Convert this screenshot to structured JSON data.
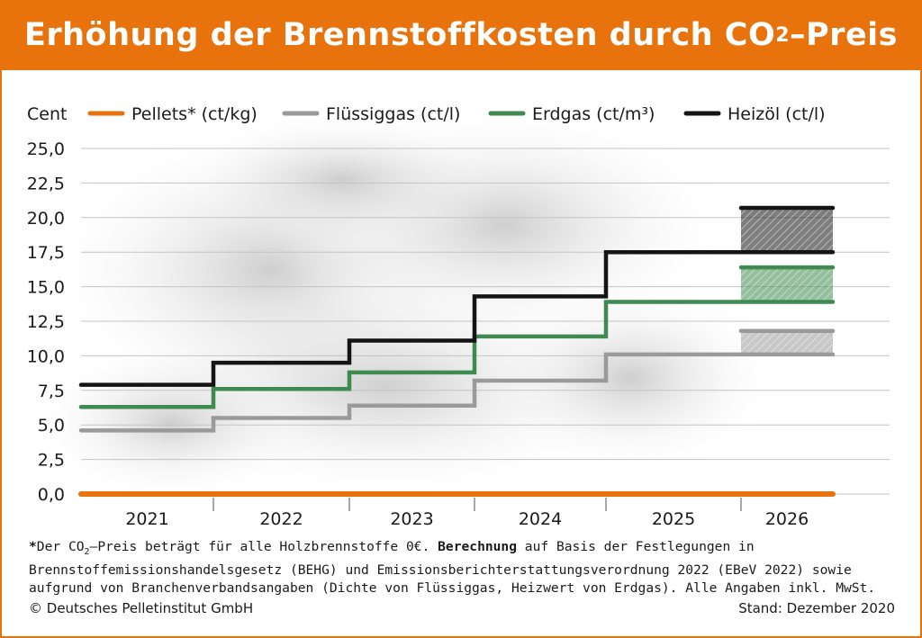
{
  "header": {
    "title_main": "Erhöhung der Brennstoffkosten durch CO",
    "title_sub": "2",
    "title_tail": "–Preis"
  },
  "chart_data": {
    "type": "line",
    "step": true,
    "title": "Erhöhung der Brennstoffkosten durch CO₂–Preis",
    "ylabel": "Cent",
    "xlabel": "",
    "ylim": [
      0,
      25
    ],
    "yticks": [
      "0,0",
      "2,5",
      "5,0",
      "7,5",
      "10,0",
      "12,5",
      "15,0",
      "17,5",
      "20,0",
      "22,5",
      "25,0"
    ],
    "categories": [
      "2021",
      "2022",
      "2023",
      "2024",
      "2025",
      "2026"
    ],
    "grid": true,
    "legend_position": "top",
    "series": [
      {
        "name": "Pellets* (ct/kg)",
        "color": "#e8720c",
        "values": [
          0,
          0,
          0,
          0,
          0,
          0
        ]
      },
      {
        "name": "Flüssiggas (ct/l)",
        "color": "#9a9a9a",
        "values": [
          4.6,
          5.5,
          6.4,
          8.2,
          10.1,
          10.1
        ],
        "range_2026": [
          10.1,
          11.8
        ]
      },
      {
        "name": "Erdgas (ct/m³)",
        "color": "#3e8a4f",
        "values": [
          6.3,
          7.6,
          8.8,
          11.4,
          13.9,
          13.9
        ],
        "range_2026": [
          13.9,
          16.4
        ]
      },
      {
        "name": "Heizöl (ct/l)",
        "color": "#141414",
        "values": [
          7.9,
          9.5,
          11.1,
          14.3,
          17.5,
          17.5
        ],
        "range_2026": [
          17.5,
          20.7
        ]
      }
    ]
  },
  "footnote": {
    "star": "*",
    "text1": "Der CO",
    "sub": "2",
    "text2": "–Preis beträgt für alle Holzbrennstoffe 0€. ",
    "bold": "Berechnung",
    "text3": " auf Basis der Festlegungen in Brennstoffemissionshandelsgesetz (BEHG) und Emissionsberichterstattungsverordnung 2022 (EBeV 2022) sowie aufgrund von Branchenverbandsangaben (Dichte von Flüssiggas, Heizwert von Erdgas). Alle Angaben inkl. MwSt."
  },
  "footer": {
    "copyright": "© Deutsches Pelletinstitut GmbH",
    "date": "Stand: Dezember 2020"
  }
}
